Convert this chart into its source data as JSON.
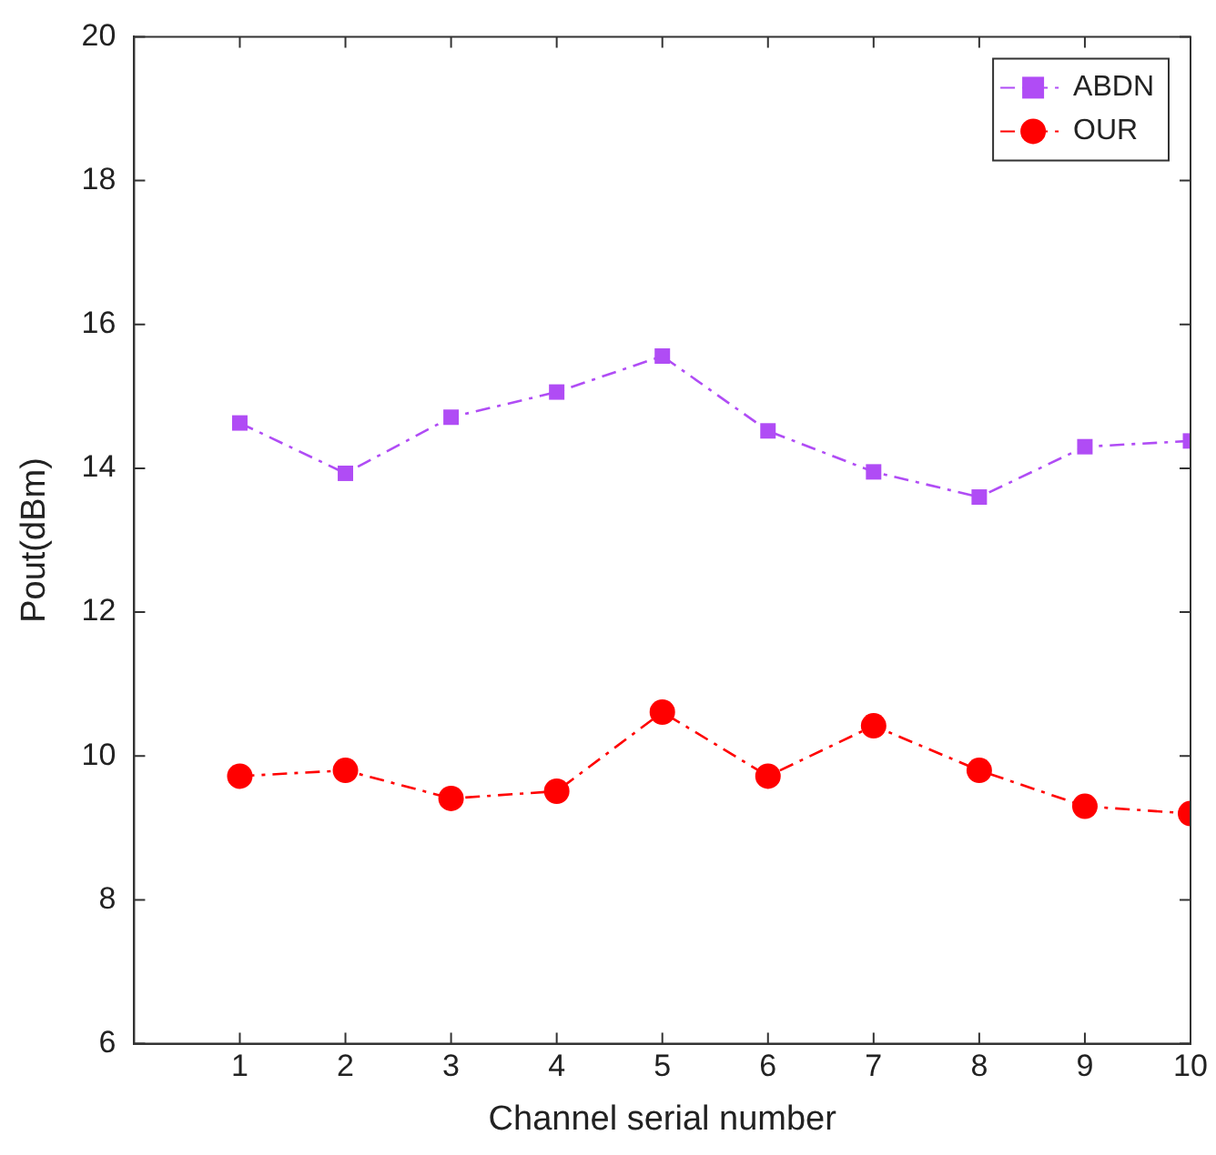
{
  "chart_data": {
    "type": "line",
    "xlabel": "Channel serial number",
    "ylabel": "Pout(dBm)",
    "x": [
      1,
      2,
      3,
      4,
      5,
      6,
      7,
      8,
      9,
      10
    ],
    "series": [
      {
        "name": "ABDN",
        "color": "#b04cf5",
        "marker": "square",
        "values": [
          14.63,
          13.93,
          14.71,
          15.06,
          15.56,
          14.52,
          13.95,
          13.6,
          14.3,
          14.38
        ]
      },
      {
        "name": "OUR",
        "color": "#ff0000",
        "marker": "circle",
        "values": [
          9.72,
          9.8,
          9.41,
          9.51,
          10.61,
          9.72,
          10.42,
          9.8,
          9.3,
          9.2
        ]
      }
    ],
    "xlim": [
      0,
      10
    ],
    "xticks": [
      1,
      2,
      3,
      4,
      5,
      6,
      7,
      8,
      9,
      10
    ],
    "ylim": [
      6,
      20
    ],
    "yticks": [
      6,
      8,
      10,
      12,
      14,
      16,
      18,
      20
    ],
    "grid": false,
    "legend": "top right",
    "line_style": "dashed"
  }
}
